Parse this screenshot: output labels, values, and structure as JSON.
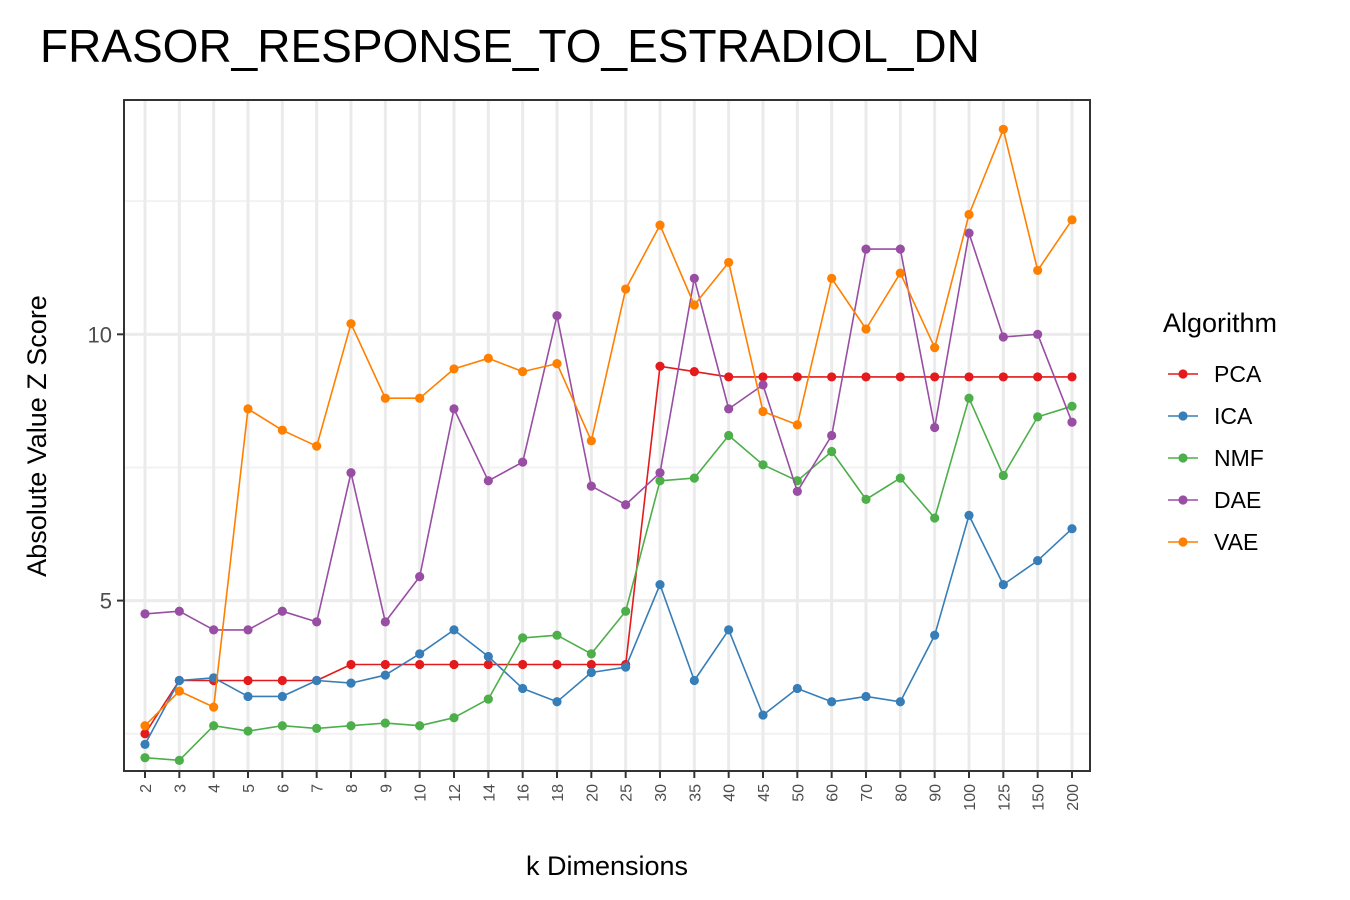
{
  "chart_data": {
    "type": "line",
    "title": "FRASOR_RESPONSE_TO_ESTRADIOL_DN",
    "xlabel": "k Dimensions",
    "ylabel": "Absolute Value Z Score",
    "categories": [
      "2",
      "3",
      "4",
      "5",
      "6",
      "7",
      "8",
      "9",
      "10",
      "12",
      "14",
      "16",
      "18",
      "20",
      "25",
      "30",
      "35",
      "40",
      "45",
      "50",
      "60",
      "70",
      "80",
      "90",
      "100",
      "125",
      "150",
      "200"
    ],
    "y_ticks": [
      5,
      10
    ],
    "ylim": [
      1.8,
      14.4
    ],
    "grid": true,
    "legend": {
      "title": "Algorithm",
      "position": "right"
    },
    "series": [
      {
        "name": "PCA",
        "color": "#e41a1c",
        "values": [
          2.5,
          3.5,
          3.5,
          3.5,
          3.5,
          3.5,
          3.8,
          3.8,
          3.8,
          3.8,
          3.8,
          3.8,
          3.8,
          3.8,
          3.8,
          9.4,
          9.3,
          9.2,
          9.2,
          9.2,
          9.2,
          9.2,
          9.2,
          9.2,
          9.2,
          9.2,
          9.2,
          9.2
        ]
      },
      {
        "name": "ICA",
        "color": "#377eb8",
        "values": [
          2.3,
          3.5,
          3.55,
          3.2,
          3.2,
          3.5,
          3.45,
          3.6,
          4.0,
          4.45,
          3.95,
          3.35,
          3.1,
          3.65,
          3.75,
          5.3,
          3.5,
          4.45,
          2.85,
          3.35,
          3.1,
          3.2,
          3.1,
          4.35,
          6.6,
          5.3,
          5.75,
          6.35
        ]
      },
      {
        "name": "NMF",
        "color": "#4daf4a",
        "values": [
          2.05,
          2.0,
          2.65,
          2.55,
          2.65,
          2.6,
          2.65,
          2.7,
          2.65,
          2.8,
          3.15,
          4.3,
          4.35,
          4.0,
          4.8,
          7.25,
          7.3,
          8.1,
          7.55,
          7.25,
          7.8,
          6.9,
          7.3,
          6.55,
          8.8,
          7.35,
          8.45,
          8.65
        ]
      },
      {
        "name": "DAE",
        "color": "#984ea3",
        "values": [
          4.75,
          4.8,
          4.45,
          4.45,
          4.8,
          4.6,
          7.4,
          4.6,
          5.45,
          8.6,
          7.25,
          7.6,
          10.35,
          7.15,
          6.8,
          7.4,
          11.05,
          8.6,
          9.05,
          7.05,
          8.1,
          11.6,
          11.6,
          8.25,
          11.9,
          9.95,
          10.0,
          8.35
        ]
      },
      {
        "name": "VAE",
        "color": "#ff7f00",
        "values": [
          2.65,
          3.3,
          3.0,
          8.6,
          8.2,
          7.9,
          10.2,
          8.8,
          8.8,
          9.35,
          9.55,
          9.3,
          9.45,
          8.0,
          10.85,
          12.05,
          10.55,
          11.35,
          8.55,
          8.3,
          11.05,
          10.1,
          11.15,
          9.75,
          12.25,
          13.85,
          11.2,
          12.15
        ]
      }
    ]
  }
}
